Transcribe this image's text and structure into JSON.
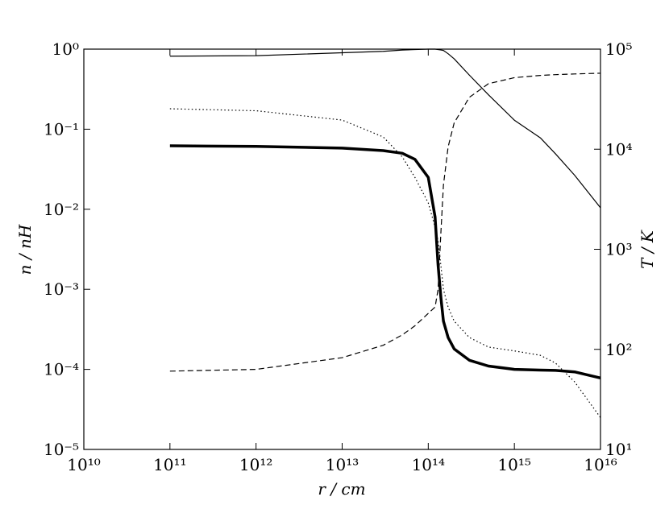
{
  "chart_data": {
    "type": "line",
    "xlabel": "r / cm",
    "ylabel": "n / nH",
    "y2label": "T / K",
    "xscale": "log",
    "yscale": "log",
    "y2scale": "log",
    "xlim": [
      10000000000.0,
      1e+16
    ],
    "ylim": [
      1e-05,
      1
    ],
    "y2lim": [
      10,
      100000
    ],
    "xticks": [
      {
        "value": 10000000000.0,
        "label": "10¹⁰"
      },
      {
        "value": 100000000000.0,
        "label": "10¹¹"
      },
      {
        "value": 1000000000000.0,
        "label": "10¹²"
      },
      {
        "value": 10000000000000.0,
        "label": "10¹³"
      },
      {
        "value": 100000000000000.0,
        "label": "10¹⁴"
      },
      {
        "value": 1000000000000000.0,
        "label": "10¹⁵"
      },
      {
        "value": 1e+16,
        "label": "10¹⁶"
      }
    ],
    "yticks": [
      {
        "value": 1e-05,
        "label": "10⁻⁵"
      },
      {
        "value": 0.0001,
        "label": "10⁻⁴"
      },
      {
        "value": 0.001,
        "label": "10⁻³"
      },
      {
        "value": 0.01,
        "label": "10⁻²"
      },
      {
        "value": 0.1,
        "label": "10⁻¹"
      },
      {
        "value": 1,
        "label": "10⁰"
      }
    ],
    "y2ticks": [
      {
        "value": 10,
        "label": "10¹"
      },
      {
        "value": 100,
        "label": "10²"
      },
      {
        "value": 1000,
        "label": "10³"
      },
      {
        "value": 10000,
        "label": "10⁴"
      },
      {
        "value": 100000,
        "label": "10⁵"
      }
    ],
    "x": [
      100000000000.0,
      1000000000000.0,
      10000000000000.0,
      30000000000000.0,
      50000000000000.0,
      70000000000000.0,
      100000000000000.0,
      120000000000000.0,
      130000000000000.0,
      140000000000000.0,
      150000000000000.0,
      170000000000000.0,
      200000000000000.0,
      300000000000000.0,
      500000000000000.0,
      1000000000000000.0,
      2000000000000000.0,
      3000000000000000.0,
      5000000000000000.0,
      1e+16
    ],
    "series": [
      {
        "color": "#000000",
        "linewidth": 3.5,
        "linestyle": "solid",
        "values": [
          0.062,
          0.061,
          0.058,
          0.054,
          0.05,
          0.042,
          0.025,
          0.008,
          0.002,
          0.0008,
          0.0004,
          0.00025,
          0.00018,
          0.00013,
          0.00011,
          0.0001,
          9.8e-05,
          9.7e-05,
          9.3e-05,
          7.8e-05
        ]
      },
      {
        "color": "#000000",
        "linewidth": 1.2,
        "linestyle": "dotted",
        "values": [
          0.18,
          0.17,
          0.13,
          0.08,
          0.045,
          0.025,
          0.012,
          0.006,
          0.004,
          0.002,
          0.001,
          0.0006,
          0.0004,
          0.00025,
          0.00019,
          0.00017,
          0.00015,
          0.00012,
          7e-05,
          2.5e-05
        ]
      },
      {
        "color": "#000000",
        "linewidth": 1.2,
        "linestyle": "dashed",
        "values": [
          9.5e-05,
          0.0001,
          0.00014,
          0.0002,
          0.00027,
          0.00035,
          0.0005,
          0.0006,
          0.001,
          0.005,
          0.02,
          0.06,
          0.12,
          0.25,
          0.37,
          0.44,
          0.47,
          0.48,
          0.49,
          0.5
        ]
      },
      {
        "color": "#000000",
        "linewidth": 1.2,
        "linestyle": "solid",
        "axis": "y2",
        "values": [
          85000,
          86000,
          92000,
          95000,
          98000,
          99000,
          100000,
          100000,
          99000,
          98000,
          97000,
          90000,
          80000,
          55000,
          35000,
          19500,
          13000,
          9000,
          5500,
          2600
        ]
      }
    ]
  }
}
